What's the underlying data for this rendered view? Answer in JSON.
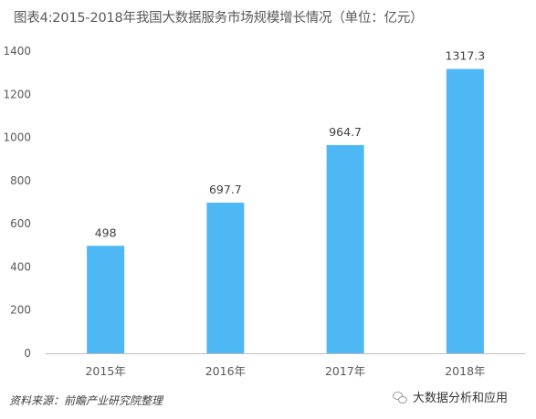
{
  "title": "图表4:2015-2018年我国大数据服务市场规模增长情况（单位：亿元）",
  "source": "资料来源：前瞻产业研究院整理",
  "footer_badge": "大数据分析和应用",
  "bar_color": "#4DB8F3",
  "chart_data": {
    "type": "bar",
    "title": "图表4:2015-2018年我国大数据服务市场规模增长情况（单位：亿元）",
    "categories": [
      "2015年",
      "2016年",
      "2017年",
      "2018年"
    ],
    "values": [
      498,
      697.7,
      964.7,
      1317.3
    ],
    "value_labels": [
      "498",
      "697.7",
      "964.7",
      "1317.3"
    ],
    "xlabel": "",
    "ylabel": "",
    "ylim": [
      0,
      1400
    ],
    "yticks": [
      0,
      200,
      400,
      600,
      800,
      1000,
      1200,
      1400
    ],
    "grid": false,
    "legend": "none"
  }
}
